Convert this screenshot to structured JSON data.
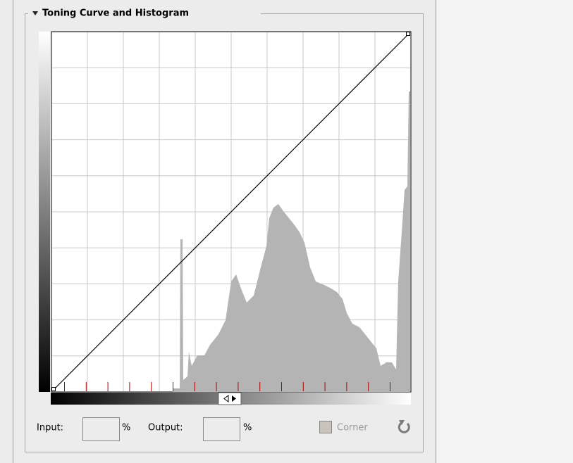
{
  "panel": {
    "title": "Toning Curve and Histogram"
  },
  "controls": {
    "input_label": "Input:",
    "input_unit": "%",
    "output_label": "Output:",
    "output_unit": "%",
    "corner_label": "Corner"
  }
}
